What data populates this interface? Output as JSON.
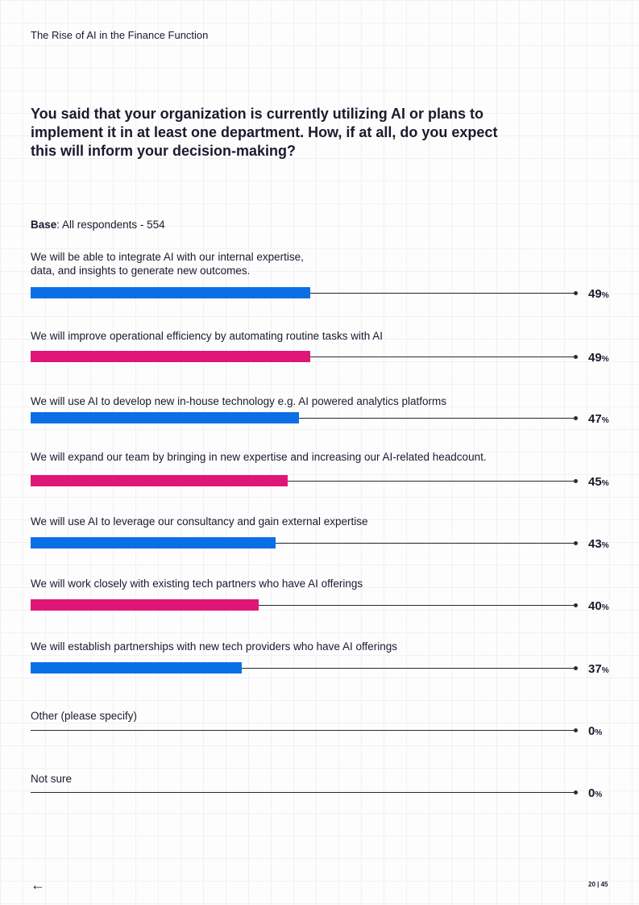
{
  "header": {
    "title": "The Rise of AI in the Finance Function"
  },
  "question": "You said that your organization is currently utilizing AI or plans to implement it in at least one department. How, if at all, do you expect this will inform your decision-making?",
  "base": {
    "label": "Base",
    "text": ": All respondents -  554"
  },
  "footer": {
    "back_icon": "arrow-left-icon",
    "page": "20 | 45"
  },
  "chart_data": {
    "type": "bar",
    "orientation": "horizontal",
    "xlim": [
      0,
      100
    ],
    "unit": "%",
    "grid": false,
    "colors": [
      "#0a6fe6",
      "#df1677"
    ],
    "categories": [
      "We will be able to integrate AI with our internal expertise, data, and insights to generate new outcomes.",
      "We will improve operational efficiency by automating routine tasks with AI",
      "We will use AI to develop new in-house technology e.g. AI powered analytics platforms",
      "We will expand our team by bringing in new expertise and increasing our AI-related headcount.",
      "We will use AI to leverage our consultancy and gain external expertise",
      "We will work closely with existing tech partners who have AI offerings",
      "We will establish partnerships with new tech providers who have AI offerings",
      "Other (please specify)",
      "Not sure"
    ],
    "values": [
      49,
      49,
      47,
      45,
      43,
      40,
      37,
      0,
      0
    ]
  }
}
